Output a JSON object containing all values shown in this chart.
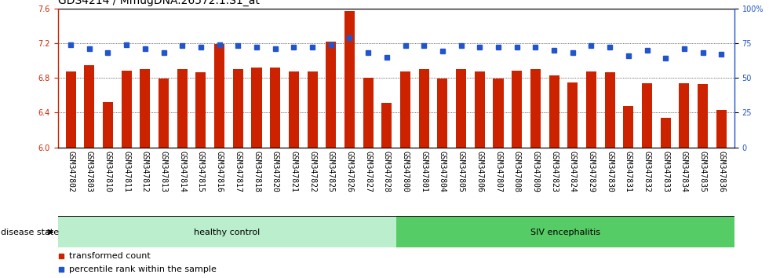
{
  "title": "GDS4214 / MmugDNA.26572.1.S1_at",
  "samples": [
    "GSM347802",
    "GSM347803",
    "GSM347810",
    "GSM347811",
    "GSM347812",
    "GSM347813",
    "GSM347814",
    "GSM347815",
    "GSM347816",
    "GSM347817",
    "GSM347818",
    "GSM347820",
    "GSM347821",
    "GSM347822",
    "GSM347825",
    "GSM347826",
    "GSM347827",
    "GSM347828",
    "GSM347800",
    "GSM347801",
    "GSM347804",
    "GSM347805",
    "GSM347806",
    "GSM347807",
    "GSM347808",
    "GSM347809",
    "GSM347823",
    "GSM347824",
    "GSM347829",
    "GSM347830",
    "GSM347831",
    "GSM347832",
    "GSM347833",
    "GSM347834",
    "GSM347835",
    "GSM347836"
  ],
  "bar_values": [
    6.87,
    6.95,
    6.52,
    6.88,
    6.9,
    6.79,
    6.9,
    6.86,
    7.19,
    6.9,
    6.92,
    6.92,
    6.87,
    6.87,
    7.22,
    7.57,
    6.8,
    6.51,
    6.87,
    6.9,
    6.79,
    6.9,
    6.87,
    6.79,
    6.88,
    6.9,
    6.83,
    6.75,
    6.87,
    6.86,
    6.48,
    6.74,
    6.34,
    6.74,
    6.73,
    6.43
  ],
  "percentile_values": [
    74,
    71,
    68,
    74,
    71,
    68,
    73,
    72,
    74,
    73,
    72,
    71,
    72,
    72,
    74,
    79,
    68,
    65,
    73,
    73,
    69,
    73,
    72,
    72,
    72,
    72,
    70,
    68,
    73,
    72,
    66,
    70,
    64,
    71,
    68,
    67
  ],
  "healthy_count": 18,
  "siv_count": 18,
  "ymin": 6.0,
  "ymax": 7.6,
  "bar_color": "#cc2200",
  "dot_color": "#2255cc",
  "healthy_color": "#bbeecc",
  "siv_color": "#55cc66",
  "xtick_bg_color": "#cccccc",
  "title_fontsize": 10,
  "tick_fontsize": 7,
  "label_fontsize": 8,
  "disease_label_fontsize": 8
}
